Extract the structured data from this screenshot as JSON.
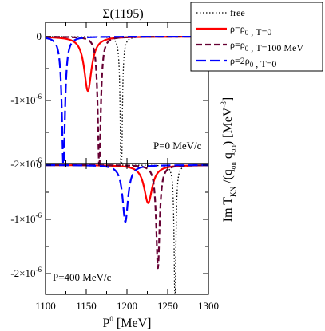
{
  "chart_data": {
    "type": "line",
    "title": "Σ(1195)",
    "xlabel": "P0 [MeV]",
    "ylabel": "Im T_KN /(q_on q_on) [MeV^-3]",
    "x_ticks": [
      "1100",
      "1150",
      "1200",
      "1250",
      "1300"
    ],
    "y_ticks": [
      "0",
      "-1×10^-6",
      "-2×10^-6"
    ],
    "xlim": [
      1100,
      1300
    ],
    "ylim": [
      -2.6e-06,
      1e-07
    ],
    "legend_position": "top-right",
    "legend": [
      {
        "name": "free",
        "style": "dotted",
        "color": "#000000"
      },
      {
        "name": "ρ=ρ0 , T=0",
        "style": "solid",
        "color": "#ff0000"
      },
      {
        "name": "ρ=ρ0 , T=100 MeV",
        "style": "dashed",
        "color": "#660033"
      },
      {
        "name": "ρ=2ρ0 , T=0",
        "style": "long-dashed",
        "color": "#0000ff"
      }
    ],
    "panels": [
      {
        "label": "P=0 MeV/c",
        "series": [
          {
            "name": "free",
            "center": 1193,
            "width": 1.2,
            "depth": -2.8e-06
          },
          {
            "name": "ρ=ρ0 , T=0",
            "center": 1152,
            "width": 5.5,
            "depth": -8.5e-07
          },
          {
            "name": "ρ=ρ0 , T=100 MeV",
            "center": 1166,
            "width": 2.2,
            "depth": -2.05e-06
          },
          {
            "name": "ρ=2ρ0 , T=0",
            "center": 1122,
            "width": 2.3,
            "depth": -2.05e-06
          }
        ]
      },
      {
        "label": "P=400 MeV/c",
        "series": [
          {
            "name": "free",
            "center": 1259,
            "width": 1.2,
            "depth": -2.8e-06
          },
          {
            "name": "ρ=ρ0 , T=0",
            "center": 1226,
            "width": 6.0,
            "depth": -7e-07
          },
          {
            "name": "ρ=ρ0 , T=100 MeV",
            "center": 1238,
            "width": 2.5,
            "depth": -1.9e-06
          },
          {
            "name": "ρ=2ρ0 , T=0",
            "center": 1198,
            "width": 4.0,
            "depth": -1.05e-06
          }
        ]
      }
    ]
  }
}
